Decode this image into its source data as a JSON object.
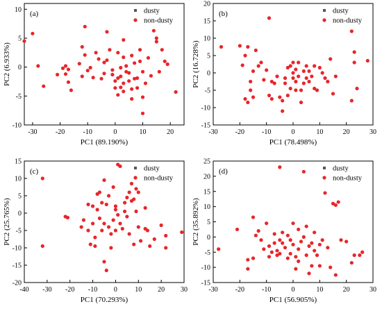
{
  "colors": {
    "dusty": "#555555",
    "non_dusty": "#e8262a"
  },
  "chart_data": [
    {
      "type": "scatter",
      "panel_label": "(a)",
      "xlabel": "PC1 (89.190%)",
      "ylabel": "PC2 (6.933%)",
      "xlim": [
        -33,
        25
      ],
      "ylim": [
        -10,
        11
      ],
      "xticks": [
        -30,
        -20,
        -10,
        0,
        10,
        20
      ],
      "yticks": [
        -10,
        -5,
        0,
        5,
        10
      ],
      "grid": false,
      "legend_position": "top-right",
      "series": [
        {
          "name": "dusty",
          "points": []
        },
        {
          "name": "non-dusty",
          "points": [
            [
              -33,
              4.5
            ],
            [
              -30,
              5.8
            ],
            [
              -28,
              0.2
            ],
            [
              -26,
              -3.3
            ],
            [
              -21,
              -1.3
            ],
            [
              -19,
              -0.2
            ],
            [
              -18,
              0.2
            ],
            [
              -18,
              -1.2
            ],
            [
              -17,
              -0.4
            ],
            [
              -17,
              -2.6
            ],
            [
              -16,
              -4.0
            ],
            [
              -13,
              0.6
            ],
            [
              -12,
              3.5
            ],
            [
              -12,
              -1.6
            ],
            [
              -11,
              7.0
            ],
            [
              -11,
              2.1
            ],
            [
              -10,
              -0.6
            ],
            [
              -9,
              -0.1
            ],
            [
              -8,
              -1.8
            ],
            [
              -7,
              2.5
            ],
            [
              -6,
              1.4
            ],
            [
              -5,
              -2.0
            ],
            [
              -4,
              0.8
            ],
            [
              -4,
              -1.1
            ],
            [
              -3,
              6.1
            ],
            [
              -3,
              1.2
            ],
            [
              -2,
              3.0
            ],
            [
              -1,
              -0.5
            ],
            [
              -1,
              -1.3
            ],
            [
              0,
              -2.4
            ],
            [
              0,
              -3.6
            ],
            [
              1,
              -1.9
            ],
            [
              1,
              -4.8
            ],
            [
              1,
              2.5
            ],
            [
              2,
              -0.1
            ],
            [
              2,
              -1.6
            ],
            [
              2,
              -3.5
            ],
            [
              3,
              4.7
            ],
            [
              3,
              1.7
            ],
            [
              3,
              -4.2
            ],
            [
              3,
              -2.8
            ],
            [
              4,
              0.2
            ],
            [
              4,
              -0.8
            ],
            [
              5,
              -1.0
            ],
            [
              5,
              -2.4
            ],
            [
              6,
              -3.8
            ],
            [
              6,
              2.0
            ],
            [
              6,
              -5.5
            ],
            [
              7,
              -2.0
            ],
            [
              7,
              0.7
            ],
            [
              8,
              -1.9
            ],
            [
              8,
              -3.6
            ],
            [
              9,
              3.0
            ],
            [
              9,
              1.0
            ],
            [
              10,
              -0.8
            ],
            [
              10,
              -8.0
            ],
            [
              10,
              -5.2
            ],
            [
              11,
              -2.8
            ],
            [
              12,
              1.6
            ],
            [
              13,
              -1.5
            ],
            [
              14,
              6.3
            ],
            [
              15,
              5.0
            ],
            [
              15,
              4.4
            ],
            [
              16,
              -0.8
            ],
            [
              17,
              3.0
            ],
            [
              18,
              1.0
            ],
            [
              19,
              0.5
            ],
            [
              22,
              -4.3
            ]
          ]
        }
      ]
    },
    {
      "type": "scatter",
      "panel_label": "(b)",
      "xlabel": "PC1 (78.498%)",
      "ylabel": "PC2 (16.728%)",
      "xlim": [
        -30,
        30
      ],
      "ylim": [
        -15,
        20
      ],
      "xticks": [
        -30,
        -20,
        -10,
        0,
        10,
        20,
        30
      ],
      "yticks": [
        -15,
        -10,
        -5,
        0,
        5,
        10,
        15,
        20
      ],
      "grid": false,
      "legend_position": "top-right",
      "series": [
        {
          "name": "dusty",
          "points": []
        },
        {
          "name": "non-dusty",
          "points": [
            [
              -27,
              7.5
            ],
            [
              -20,
              7.8
            ],
            [
              -19,
              2.2
            ],
            [
              -18,
              5.0
            ],
            [
              -18,
              -7.5
            ],
            [
              -17,
              -8.5
            ],
            [
              -17,
              7.5
            ],
            [
              -16,
              -2.5
            ],
            [
              -16,
              -5.0
            ],
            [
              -15,
              0.5
            ],
            [
              -15,
              -7.0
            ],
            [
              -14,
              6.5
            ],
            [
              -13,
              2.0
            ],
            [
              -12,
              3.0
            ],
            [
              -11,
              -2.0
            ],
            [
              -10,
              0.8
            ],
            [
              -9,
              15.8
            ],
            [
              -9,
              -6.5
            ],
            [
              -8,
              -7.5
            ],
            [
              -8,
              -2.5
            ],
            [
              -7,
              -3.0
            ],
            [
              -6,
              -1.0
            ],
            [
              -5,
              -7.0
            ],
            [
              -4,
              -8.0
            ],
            [
              -4,
              -11.0
            ],
            [
              -3,
              -3.0
            ],
            [
              -3,
              -1.5
            ],
            [
              -2,
              1.5
            ],
            [
              -2,
              -6.5
            ],
            [
              -1,
              -4.5
            ],
            [
              -1,
              2.0
            ],
            [
              0,
              3.0
            ],
            [
              0,
              0.0
            ],
            [
              0,
              -1.5
            ],
            [
              1,
              1.0
            ],
            [
              1,
              -2.5
            ],
            [
              1,
              -5.0
            ],
            [
              2,
              -1.0
            ],
            [
              2,
              3.0
            ],
            [
              3,
              -5.0
            ],
            [
              3,
              -8.5
            ],
            [
              4,
              0.5
            ],
            [
              4,
              -3.0
            ],
            [
              5,
              2.0
            ],
            [
              5,
              -1.5
            ],
            [
              6,
              0.5
            ],
            [
              6,
              -2.5
            ],
            [
              7,
              -1.0
            ],
            [
              8,
              2.0
            ],
            [
              8,
              -4.5
            ],
            [
              9,
              -5.0
            ],
            [
              10,
              1.5
            ],
            [
              11,
              0.0
            ],
            [
              12,
              -1.5
            ],
            [
              13,
              -2.5
            ],
            [
              14,
              4.0
            ],
            [
              15,
              -6.0
            ],
            [
              16,
              -1.0
            ],
            [
              22,
              -8.0
            ],
            [
              22,
              12.0
            ],
            [
              23,
              6.0
            ],
            [
              23,
              3.0
            ],
            [
              24,
              -4.5
            ],
            [
              28,
              3.5
            ]
          ]
        }
      ]
    },
    {
      "type": "scatter",
      "panel_label": "(c)",
      "xlabel": "PC1 (70.293%)",
      "ylabel": "PC2 (25.765%)",
      "xlim": [
        -40,
        30
      ],
      "ylim": [
        -20,
        15
      ],
      "xticks": [
        -40,
        -30,
        -20,
        -10,
        0,
        10,
        20,
        30
      ],
      "yticks": [
        -20,
        -15,
        -10,
        -5,
        0,
        5,
        10,
        15
      ],
      "grid": false,
      "legend_position": "top-right",
      "series": [
        {
          "name": "dusty",
          "points": []
        },
        {
          "name": "non-dusty",
          "points": [
            [
              -32,
              10.0
            ],
            [
              -32,
              -9.5
            ],
            [
              -22,
              -1.0
            ],
            [
              -21,
              -1.3
            ],
            [
              -15,
              -4.0
            ],
            [
              -14,
              -2.0
            ],
            [
              -12,
              2.5
            ],
            [
              -12,
              -5.0
            ],
            [
              -11,
              -9.0
            ],
            [
              -10,
              -3.0
            ],
            [
              -10,
              2.0
            ],
            [
              -9,
              -7.0
            ],
            [
              -9,
              -9.5
            ],
            [
              -8,
              5.5
            ],
            [
              -8,
              1.0
            ],
            [
              -7,
              6.0
            ],
            [
              -7,
              -1.5
            ],
            [
              -6,
              3.0
            ],
            [
              -6,
              -5.0
            ],
            [
              -5,
              9.5
            ],
            [
              -5,
              -3.0
            ],
            [
              -5,
              -14.0
            ],
            [
              -4,
              2.5
            ],
            [
              -4,
              -16.5
            ],
            [
              -3,
              5.0
            ],
            [
              -3,
              -4.0
            ],
            [
              -2,
              -6.0
            ],
            [
              -2,
              -10.0
            ],
            [
              -1,
              7.5
            ],
            [
              -1,
              -2.0
            ],
            [
              0,
              -5.0
            ],
            [
              0,
              1.0
            ],
            [
              0,
              2.0
            ],
            [
              1,
              14.0
            ],
            [
              1,
              -0.5
            ],
            [
              2,
              13.5
            ],
            [
              2,
              -3.0
            ],
            [
              3,
              -4.5
            ],
            [
              4,
              0.5
            ],
            [
              4,
              3.0
            ],
            [
              5,
              -1.0
            ],
            [
              5,
              4.5
            ],
            [
              6,
              6.0
            ],
            [
              6,
              -6.0
            ],
            [
              7,
              8.5
            ],
            [
              7,
              3.5
            ],
            [
              8,
              -9.0
            ],
            [
              8,
              4.0
            ],
            [
              9,
              7.0
            ],
            [
              9,
              0.5
            ],
            [
              10,
              6.0
            ],
            [
              10,
              -4.0
            ],
            [
              11,
              -8.0
            ],
            [
              13,
              1.5
            ],
            [
              13,
              -4.5
            ],
            [
              14,
              -5.0
            ],
            [
              15,
              -9.5
            ],
            [
              17,
              -7.5
            ],
            [
              20,
              -3.5
            ],
            [
              22,
              -6.5
            ],
            [
              22,
              -10.0
            ],
            [
              29,
              -5.5
            ]
          ]
        }
      ]
    },
    {
      "type": "scatter",
      "panel_label": "(d)",
      "xlabel": "PC1 (56.905%)",
      "ylabel": "PC2 (35.892%)",
      "xlim": [
        -30,
        30
      ],
      "ylim": [
        -15,
        25
      ],
      "xticks": [
        -30,
        -20,
        -10,
        0,
        10,
        20,
        30
      ],
      "yticks": [
        -15,
        -10,
        -5,
        0,
        5,
        10,
        15,
        20,
        25
      ],
      "grid": false,
      "legend_position": "top-right",
      "series": [
        {
          "name": "dusty",
          "points": []
        },
        {
          "name": "non-dusty",
          "points": [
            [
              -28,
              -4.0
            ],
            [
              -21,
              2.5
            ],
            [
              -17,
              -7.5
            ],
            [
              -17,
              -10.5
            ],
            [
              -15,
              6.5
            ],
            [
              -15,
              -7.0
            ],
            [
              -14,
              0.5
            ],
            [
              -13,
              2.0
            ],
            [
              -12,
              -1.0
            ],
            [
              -11,
              -4.0
            ],
            [
              -10,
              4.5
            ],
            [
              -9,
              -3.0
            ],
            [
              -9,
              -6.5
            ],
            [
              -8,
              -5.0
            ],
            [
              -7,
              1.0
            ],
            [
              -7,
              -2.0
            ],
            [
              -6,
              -4.5
            ],
            [
              -6,
              -6.0
            ],
            [
              -5,
              -5.5
            ],
            [
              -5,
              23.0
            ],
            [
              -5,
              -1.0
            ],
            [
              -4,
              -2.0
            ],
            [
              -4,
              1.5
            ],
            [
              -3,
              -3.5
            ],
            [
              -2,
              -7.0
            ],
            [
              -2,
              0.5
            ],
            [
              -1,
              -5.5
            ],
            [
              -1,
              -1.0
            ],
            [
              0,
              -2.5
            ],
            [
              0,
              4.5
            ],
            [
              1,
              -6.5
            ],
            [
              1,
              -10.5
            ],
            [
              2,
              -4.0
            ],
            [
              2,
              -8.0
            ],
            [
              2,
              2.5
            ],
            [
              3,
              -1.5
            ],
            [
              4,
              0.0
            ],
            [
              4,
              21.5
            ],
            [
              5,
              -6.0
            ],
            [
              5,
              3.5
            ],
            [
              6,
              -3.0
            ],
            [
              6,
              -12.0
            ],
            [
              7,
              -2.0
            ],
            [
              7,
              -9.5
            ],
            [
              8,
              -4.5
            ],
            [
              8,
              1.5
            ],
            [
              9,
              -6.0
            ],
            [
              10,
              -9.5
            ],
            [
              10,
              -2.5
            ],
            [
              11,
              -1.0
            ],
            [
              12,
              14.5
            ],
            [
              13,
              -3.5
            ],
            [
              14,
              -10.0
            ],
            [
              15,
              11.0
            ],
            [
              16,
              10.5
            ],
            [
              16,
              -12.5
            ],
            [
              17,
              11.5
            ],
            [
              18,
              -1.0
            ],
            [
              20,
              -1.5
            ],
            [
              22,
              -8.5
            ],
            [
              23,
              -6.0
            ],
            [
              25,
              -6.0
            ],
            [
              26,
              -5.0
            ]
          ]
        }
      ]
    }
  ]
}
